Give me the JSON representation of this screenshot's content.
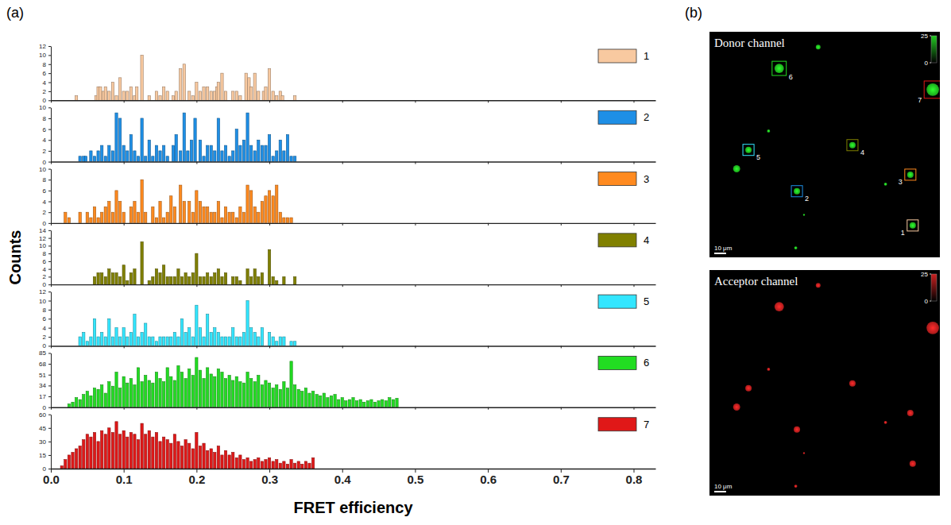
{
  "chart_data": {
    "type": "bar",
    "panel": "(a)",
    "x_label": "FRET efficiency",
    "y_label": "Counts",
    "xlim": [
      0,
      0.83
    ],
    "xticks": [
      {
        "value": 0,
        "label": "0.0"
      },
      0.1,
      0.2,
      0.3,
      0.4,
      0.5,
      0.6,
      0.7,
      0.8
    ],
    "legend": "top-right",
    "series": [
      {
        "name": "1",
        "color": "#f8c9a0",
        "ylim": [
          0,
          12
        ],
        "yticks": [
          0,
          2,
          4,
          6,
          8,
          10,
          12
        ],
        "x": [
          0.035,
          0.062,
          0.065,
          0.068,
          0.072,
          0.075,
          0.08,
          0.085,
          0.09,
          0.095,
          0.1,
          0.105,
          0.11,
          0.115,
          0.118,
          0.125,
          0.135,
          0.145,
          0.15,
          0.155,
          0.16,
          0.168,
          0.172,
          0.178,
          0.183,
          0.19,
          0.195,
          0.2,
          0.205,
          0.21,
          0.215,
          0.22,
          0.225,
          0.228,
          0.23,
          0.235,
          0.24,
          0.25,
          0.255,
          0.26,
          0.268,
          0.272,
          0.275,
          0.28,
          0.285,
          0.292,
          0.295,
          0.3,
          0.305,
          0.31,
          0.315,
          0.318,
          0.335
        ],
        "values": [
          1,
          1,
          3,
          3,
          2,
          3,
          2,
          4,
          1,
          5,
          2,
          2,
          3,
          1,
          3,
          10,
          1,
          2,
          1,
          3,
          2,
          1,
          2,
          7,
          8,
          2,
          1,
          4,
          2,
          3,
          3,
          2,
          2,
          3,
          4,
          6,
          2,
          2,
          2,
          1,
          6,
          5,
          3,
          6,
          2,
          2,
          3,
          7,
          2,
          1,
          2,
          1,
          1
        ]
      },
      {
        "name": "2",
        "color": "#1e8fe6",
        "ylim": [
          0,
          10
        ],
        "yticks": [
          0,
          2,
          4,
          6,
          8,
          10
        ],
        "x": [
          0.04,
          0.045,
          0.048,
          0.055,
          0.06,
          0.065,
          0.07,
          0.075,
          0.08,
          0.085,
          0.09,
          0.095,
          0.1,
          0.105,
          0.11,
          0.115,
          0.12,
          0.125,
          0.13,
          0.135,
          0.14,
          0.145,
          0.15,
          0.155,
          0.16,
          0.168,
          0.172,
          0.178,
          0.183,
          0.188,
          0.193,
          0.198,
          0.205,
          0.21,
          0.215,
          0.22,
          0.225,
          0.23,
          0.235,
          0.24,
          0.245,
          0.25,
          0.255,
          0.26,
          0.265,
          0.27,
          0.275,
          0.28,
          0.285,
          0.29,
          0.295,
          0.3,
          0.305,
          0.31,
          0.315,
          0.32,
          0.325,
          0.33,
          0.335
        ],
        "values": [
          1,
          1,
          1,
          2,
          1,
          2,
          3,
          1,
          3,
          2,
          9,
          8,
          3,
          2,
          5,
          2,
          1,
          8,
          1,
          4,
          1,
          3,
          2,
          3,
          1,
          3,
          5,
          2,
          9,
          2,
          4,
          8,
          4,
          1,
          3,
          3,
          2,
          8,
          2,
          3,
          1,
          2,
          6,
          3,
          4,
          9,
          3,
          2,
          4,
          3,
          3,
          5,
          1,
          2,
          4,
          2,
          5,
          1,
          1
        ]
      },
      {
        "name": "3",
        "color": "#ff8a1f",
        "ylim": [
          0,
          10
        ],
        "yticks": [
          0,
          2,
          4,
          6,
          8,
          10
        ],
        "x": [
          0.02,
          0.025,
          0.04,
          0.05,
          0.055,
          0.06,
          0.065,
          0.07,
          0.075,
          0.08,
          0.085,
          0.09,
          0.095,
          0.1,
          0.11,
          0.115,
          0.12,
          0.125,
          0.13,
          0.14,
          0.145,
          0.15,
          0.155,
          0.16,
          0.165,
          0.17,
          0.178,
          0.183,
          0.19,
          0.195,
          0.2,
          0.205,
          0.21,
          0.215,
          0.22,
          0.225,
          0.23,
          0.235,
          0.24,
          0.245,
          0.25,
          0.255,
          0.26,
          0.265,
          0.27,
          0.275,
          0.28,
          0.285,
          0.29,
          0.295,
          0.3,
          0.305,
          0.31,
          0.315,
          0.32,
          0.325,
          0.33
        ],
        "values": [
          2,
          1,
          2,
          2,
          1,
          3,
          1,
          2,
          3,
          4,
          2,
          6,
          4,
          2,
          3,
          4,
          2,
          8,
          2,
          3,
          1,
          4,
          1,
          2,
          5,
          3,
          7,
          4,
          4,
          2,
          6,
          4,
          3,
          3,
          2,
          2,
          4,
          1,
          3,
          2,
          2,
          1,
          3,
          2,
          7,
          6,
          3,
          2,
          4,
          5,
          6,
          5,
          7,
          2,
          1,
          1,
          1
        ]
      },
      {
        "name": "4",
        "color": "#808000",
        "ylim": [
          0,
          14
        ],
        "yticks": [
          0,
          2,
          4,
          6,
          8,
          10,
          12,
          14
        ],
        "x": [
          0.06,
          0.065,
          0.07,
          0.075,
          0.08,
          0.085,
          0.09,
          0.095,
          0.1,
          0.105,
          0.11,
          0.115,
          0.125,
          0.135,
          0.14,
          0.145,
          0.15,
          0.155,
          0.16,
          0.165,
          0.17,
          0.175,
          0.18,
          0.185,
          0.19,
          0.195,
          0.2,
          0.205,
          0.21,
          0.215,
          0.22,
          0.225,
          0.23,
          0.235,
          0.24,
          0.25,
          0.255,
          0.26,
          0.27,
          0.275,
          0.28,
          0.285,
          0.29,
          0.3,
          0.305,
          0.31,
          0.32,
          0.335
        ],
        "values": [
          2,
          3,
          3,
          2,
          4,
          3,
          3,
          2,
          5,
          1,
          3,
          4,
          11,
          1,
          2,
          4,
          3,
          5,
          2,
          2,
          2,
          4,
          2,
          3,
          2,
          3,
          8,
          2,
          2,
          3,
          2,
          3,
          4,
          2,
          3,
          2,
          2,
          1,
          4,
          2,
          4,
          2,
          3,
          9,
          2,
          1,
          2,
          2
        ]
      },
      {
        "name": "5",
        "color": "#33e6ff",
        "ylim": [
          0,
          12
        ],
        "yticks": [
          0,
          2,
          4,
          6,
          8,
          10,
          12
        ],
        "x": [
          0.04,
          0.045,
          0.05,
          0.055,
          0.06,
          0.065,
          0.07,
          0.075,
          0.08,
          0.085,
          0.09,
          0.095,
          0.1,
          0.105,
          0.11,
          0.115,
          0.12,
          0.125,
          0.13,
          0.135,
          0.14,
          0.145,
          0.15,
          0.155,
          0.16,
          0.165,
          0.17,
          0.175,
          0.18,
          0.185,
          0.19,
          0.195,
          0.2,
          0.205,
          0.21,
          0.215,
          0.22,
          0.225,
          0.23,
          0.235,
          0.24,
          0.245,
          0.25,
          0.255,
          0.26,
          0.265,
          0.27,
          0.275,
          0.28,
          0.285,
          0.29,
          0.3,
          0.305,
          0.31,
          0.315,
          0.32,
          0.33,
          0.335
        ],
        "values": [
          2,
          3,
          1,
          2,
          6,
          2,
          3,
          2,
          6,
          2,
          4,
          2,
          4,
          2,
          3,
          7,
          2,
          3,
          5,
          2,
          2,
          1,
          2,
          2,
          2,
          2,
          3,
          2,
          6,
          3,
          4,
          2,
          9,
          4,
          2,
          7,
          3,
          4,
          3,
          2,
          2,
          2,
          4,
          2,
          2,
          3,
          10,
          4,
          3,
          2,
          4,
          3,
          2,
          1,
          2,
          2,
          1,
          1
        ]
      },
      {
        "name": "6",
        "color": "#22dd22",
        "ylim": [
          0,
          85
        ],
        "yticks": [
          0,
          17,
          34,
          51,
          68,
          85
        ],
        "x": [
          0.025,
          0.03,
          0.035,
          0.04,
          0.045,
          0.05,
          0.055,
          0.06,
          0.065,
          0.07,
          0.075,
          0.08,
          0.085,
          0.09,
          0.095,
          0.1,
          0.105,
          0.11,
          0.115,
          0.12,
          0.125,
          0.13,
          0.135,
          0.14,
          0.145,
          0.15,
          0.155,
          0.16,
          0.165,
          0.17,
          0.175,
          0.18,
          0.185,
          0.19,
          0.195,
          0.2,
          0.205,
          0.21,
          0.215,
          0.22,
          0.225,
          0.23,
          0.235,
          0.24,
          0.245,
          0.25,
          0.255,
          0.26,
          0.265,
          0.27,
          0.275,
          0.28,
          0.285,
          0.29,
          0.295,
          0.3,
          0.305,
          0.31,
          0.315,
          0.32,
          0.325,
          0.33,
          0.335,
          0.34,
          0.345,
          0.35,
          0.355,
          0.36,
          0.365,
          0.37,
          0.375,
          0.38,
          0.385,
          0.39,
          0.395,
          0.4,
          0.405,
          0.41,
          0.415,
          0.42,
          0.425,
          0.43,
          0.435,
          0.44,
          0.445,
          0.45,
          0.455,
          0.46,
          0.465,
          0.47,
          0.475
        ],
        "values": [
          5,
          8,
          15,
          12,
          20,
          25,
          18,
          30,
          28,
          35,
          22,
          40,
          33,
          55,
          30,
          48,
          38,
          45,
          35,
          62,
          40,
          50,
          42,
          38,
          55,
          45,
          40,
          62,
          48,
          42,
          65,
          55,
          45,
          60,
          50,
          78,
          58,
          45,
          62,
          52,
          48,
          60,
          55,
          45,
          50,
          42,
          48,
          40,
          38,
          55,
          45,
          40,
          50,
          35,
          42,
          38,
          30,
          35,
          28,
          40,
          30,
          72,
          35,
          28,
          25,
          30,
          22,
          25,
          20,
          18,
          22,
          15,
          18,
          20,
          12,
          15,
          10,
          12,
          15,
          10,
          12,
          8,
          10,
          12,
          8,
          10,
          12,
          10,
          15,
          12,
          14
        ]
      },
      {
        "name": "7",
        "color": "#e01818",
        "ylim": [
          0,
          60
        ],
        "yticks": [
          0,
          15,
          30,
          45,
          60
        ],
        "x": [
          0.015,
          0.02,
          0.025,
          0.03,
          0.035,
          0.04,
          0.045,
          0.05,
          0.055,
          0.06,
          0.065,
          0.07,
          0.075,
          0.08,
          0.085,
          0.09,
          0.095,
          0.1,
          0.105,
          0.11,
          0.115,
          0.12,
          0.125,
          0.13,
          0.135,
          0.14,
          0.145,
          0.15,
          0.155,
          0.16,
          0.165,
          0.17,
          0.175,
          0.18,
          0.185,
          0.19,
          0.195,
          0.2,
          0.205,
          0.21,
          0.215,
          0.22,
          0.225,
          0.23,
          0.235,
          0.24,
          0.245,
          0.25,
          0.255,
          0.26,
          0.265,
          0.27,
          0.275,
          0.28,
          0.285,
          0.29,
          0.295,
          0.3,
          0.305,
          0.31,
          0.315,
          0.32,
          0.325,
          0.33,
          0.335,
          0.34,
          0.345,
          0.35,
          0.355,
          0.36
        ],
        "values": [
          3,
          10,
          15,
          18,
          22,
          25,
          32,
          38,
          35,
          40,
          30,
          42,
          38,
          45,
          40,
          52,
          38,
          42,
          35,
          40,
          38,
          32,
          50,
          38,
          42,
          35,
          40,
          30,
          35,
          32,
          28,
          38,
          30,
          25,
          32,
          28,
          22,
          40,
          25,
          28,
          20,
          22,
          18,
          25,
          15,
          20,
          15,
          18,
          12,
          15,
          10,
          12,
          8,
          10,
          12,
          8,
          10,
          12,
          8,
          10,
          6,
          8,
          5,
          10,
          6,
          8,
          5,
          8,
          6,
          12
        ]
      }
    ]
  },
  "images": {
    "panel": "(b)",
    "xlim": [
      0,
      195
    ],
    "ylim": [
      0,
      191
    ],
    "channels": [
      {
        "title": "Donor channel",
        "color": "#22cc22",
        "data_labels": true
      },
      {
        "title": "Acceptor channel",
        "color": "#cc2020"
      }
    ],
    "colorbar": {
      "range": [
        0,
        25
      ],
      "ticks": [
        0,
        25
      ]
    },
    "scale_bar": {
      "length": 10,
      "label": "10 μm"
    },
    "spots": [
      {
        "label": "6",
        "x": 59,
        "y": 31,
        "r": 4
      },
      {
        "label": "7",
        "x": 189,
        "y": 49,
        "r": 5.3
      },
      {
        "label": "5",
        "x": 33,
        "y": 100,
        "r": 2.7
      },
      {
        "label": "4",
        "x": 121,
        "y": 96,
        "r": 2.7
      },
      {
        "label": "3",
        "x": 170,
        "y": 121,
        "r": 2.7
      },
      {
        "label": "2",
        "x": 74,
        "y": 135,
        "r": 2.7
      },
      {
        "label": "1",
        "x": 172,
        "y": 164,
        "r": 2.7
      },
      {
        "x": 23,
        "y": 116,
        "r": 3
      },
      {
        "x": 50,
        "y": 84,
        "r": 1.3
      },
      {
        "x": 149,
        "y": 129,
        "r": 1.3
      },
      {
        "x": 92,
        "y": 13,
        "r": 2
      },
      {
        "x": 73,
        "y": 183,
        "r": 1.3
      },
      {
        "x": 80,
        "y": 155,
        "r": 0.8
      }
    ]
  }
}
